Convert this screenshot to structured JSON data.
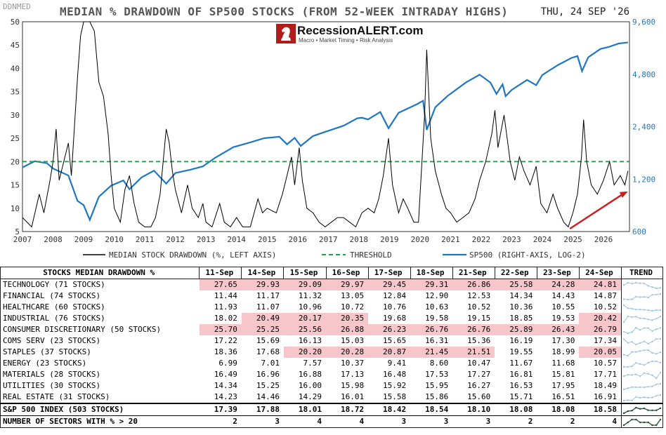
{
  "header": {
    "source": "DDNMED",
    "title": "MEDIAN % DRAWDOWN OF SP500 STOCKS (FROM 52-WEEK INTRADAY HIGHS)",
    "date": "THU, 24 SEP '26",
    "logo_text": "RecessionALERT.com",
    "logo_sub": "Macro • Market Timing • Risk Analysis"
  },
  "colors": {
    "drawdown": "#000000",
    "sp500": "#1f77c4",
    "threshold": "#1aa64a",
    "trend_arrow": "#cc1f1f",
    "highlight": "#f7c6cb"
  },
  "chart_data": {
    "type": "line",
    "x_range": [
      2007,
      2026.85
    ],
    "x_ticks": [
      "2007",
      "2008",
      "2009",
      "2010",
      "2011",
      "2012",
      "2013",
      "2014",
      "2015",
      "2016",
      "2017",
      "2018",
      "2019",
      "2020",
      "2021",
      "2022",
      "2023",
      "2024",
      "2025",
      "2026"
    ],
    "left_axis": {
      "ylim": [
        5,
        50
      ],
      "ticks": [
        "5",
        "10",
        "15",
        "20",
        "25",
        "30",
        "35",
        "40",
        "45",
        "50"
      ],
      "label": "MEDIAN STOCK DRAWDOWN (%, LEFT AXIS)"
    },
    "right_axis": {
      "scale": "log2",
      "ylim": [
        600,
        9600
      ],
      "ticks": [
        "600",
        "1,200",
        "2,400",
        "4,800",
        "9,600"
      ],
      "label": "SP500 (RIGHT-AXIS, LOG-2)"
    },
    "threshold": {
      "value": 20,
      "label": "THRESHOLD"
    },
    "series": [
      {
        "name": "MEDIAN STOCK DRAWDOWN (%, LEFT AXIS)",
        "axis": "left",
        "points": [
          [
            2007.0,
            8
          ],
          [
            2007.3,
            6
          ],
          [
            2007.55,
            13
          ],
          [
            2007.7,
            9
          ],
          [
            2007.9,
            16
          ],
          [
            2008.0,
            20
          ],
          [
            2008.1,
            27
          ],
          [
            2008.2,
            16
          ],
          [
            2008.35,
            20
          ],
          [
            2008.5,
            24
          ],
          [
            2008.6,
            17
          ],
          [
            2008.8,
            38
          ],
          [
            2008.9,
            47
          ],
          [
            2009.0,
            50
          ],
          [
            2009.2,
            50
          ],
          [
            2009.35,
            48
          ],
          [
            2009.5,
            37
          ],
          [
            2009.65,
            34
          ],
          [
            2009.8,
            26
          ],
          [
            2009.9,
            17
          ],
          [
            2010.0,
            10
          ],
          [
            2010.2,
            7
          ],
          [
            2010.35,
            14
          ],
          [
            2010.5,
            17
          ],
          [
            2010.65,
            11
          ],
          [
            2010.8,
            7
          ],
          [
            2011.0,
            6
          ],
          [
            2011.2,
            6
          ],
          [
            2011.35,
            8
          ],
          [
            2011.5,
            13
          ],
          [
            2011.7,
            27
          ],
          [
            2011.8,
            24
          ],
          [
            2011.9,
            18
          ],
          [
            2012.0,
            14
          ],
          [
            2012.2,
            9
          ],
          [
            2012.4,
            15
          ],
          [
            2012.55,
            10
          ],
          [
            2012.75,
            8
          ],
          [
            2012.9,
            11
          ],
          [
            2013.0,
            7
          ],
          [
            2013.2,
            6
          ],
          [
            2013.45,
            11
          ],
          [
            2013.6,
            7
          ],
          [
            2013.8,
            6
          ],
          [
            2014.0,
            8
          ],
          [
            2014.2,
            6
          ],
          [
            2014.45,
            6
          ],
          [
            2014.7,
            12
          ],
          [
            2014.85,
            9
          ],
          [
            2015.0,
            10
          ],
          [
            2015.3,
            9
          ],
          [
            2015.5,
            13
          ],
          [
            2015.65,
            17
          ],
          [
            2015.8,
            21
          ],
          [
            2015.9,
            15
          ],
          [
            2016.05,
            23
          ],
          [
            2016.15,
            16
          ],
          [
            2016.3,
            10
          ],
          [
            2016.5,
            9
          ],
          [
            2016.7,
            7
          ],
          [
            2016.9,
            6
          ],
          [
            2017.1,
            7
          ],
          [
            2017.3,
            8
          ],
          [
            2017.5,
            8
          ],
          [
            2017.7,
            7
          ],
          [
            2017.9,
            6
          ],
          [
            2018.1,
            9
          ],
          [
            2018.3,
            10
          ],
          [
            2018.5,
            9
          ],
          [
            2018.65,
            12
          ],
          [
            2018.8,
            17
          ],
          [
            2018.97,
            25
          ],
          [
            2019.1,
            15
          ],
          [
            2019.3,
            9
          ],
          [
            2019.45,
            12
          ],
          [
            2019.6,
            10
          ],
          [
            2019.8,
            7
          ],
          [
            2019.95,
            7
          ],
          [
            2020.15,
            30
          ],
          [
            2020.22,
            44
          ],
          [
            2020.35,
            25
          ],
          [
            2020.5,
            18
          ],
          [
            2020.7,
            13
          ],
          [
            2020.85,
            10
          ],
          [
            2021.0,
            9
          ],
          [
            2021.2,
            7
          ],
          [
            2021.4,
            8
          ],
          [
            2021.6,
            9
          ],
          [
            2021.8,
            12
          ],
          [
            2021.95,
            16
          ],
          [
            2022.15,
            20
          ],
          [
            2022.35,
            26
          ],
          [
            2022.45,
            31
          ],
          [
            2022.55,
            23
          ],
          [
            2022.75,
            30
          ],
          [
            2022.85,
            25
          ],
          [
            2022.95,
            20
          ],
          [
            2023.1,
            16
          ],
          [
            2023.25,
            21
          ],
          [
            2023.4,
            18
          ],
          [
            2023.6,
            15
          ],
          [
            2023.8,
            19
          ],
          [
            2023.95,
            11
          ],
          [
            2024.15,
            9
          ],
          [
            2024.35,
            13
          ],
          [
            2024.5,
            10
          ],
          [
            2024.7,
            7
          ],
          [
            2024.85,
            6
          ],
          [
            2025.0,
            9
          ],
          [
            2025.15,
            13
          ],
          [
            2025.28,
            21
          ],
          [
            2025.35,
            29
          ],
          [
            2025.45,
            20
          ],
          [
            2025.6,
            15
          ],
          [
            2025.8,
            13
          ],
          [
            2026.0,
            16
          ],
          [
            2026.2,
            20
          ],
          [
            2026.35,
            15
          ],
          [
            2026.55,
            17
          ],
          [
            2026.7,
            15
          ],
          [
            2026.8,
            18
          ]
        ]
      },
      {
        "name": "SP500 (RIGHT-AXIS, LOG-2)",
        "axis": "right",
        "points": [
          [
            2007.0,
            1400
          ],
          [
            2007.4,
            1520
          ],
          [
            2007.8,
            1480
          ],
          [
            2008.0,
            1380
          ],
          [
            2008.5,
            1260
          ],
          [
            2008.8,
            900
          ],
          [
            2009.0,
            850
          ],
          [
            2009.2,
            700
          ],
          [
            2009.5,
            950
          ],
          [
            2009.9,
            1100
          ],
          [
            2010.3,
            1180
          ],
          [
            2010.5,
            1050
          ],
          [
            2010.9,
            1230
          ],
          [
            2011.3,
            1340
          ],
          [
            2011.7,
            1130
          ],
          [
            2012.0,
            1300
          ],
          [
            2012.5,
            1360
          ],
          [
            2012.9,
            1420
          ],
          [
            2013.3,
            1590
          ],
          [
            2013.9,
            1830
          ],
          [
            2014.5,
            1960
          ],
          [
            2014.9,
            2060
          ],
          [
            2015.4,
            2100
          ],
          [
            2015.65,
            1900
          ],
          [
            2015.9,
            2070
          ],
          [
            2016.1,
            1860
          ],
          [
            2016.5,
            2120
          ],
          [
            2016.9,
            2240
          ],
          [
            2017.5,
            2430
          ],
          [
            2017.95,
            2680
          ],
          [
            2018.1,
            2700
          ],
          [
            2018.3,
            2640
          ],
          [
            2018.7,
            2910
          ],
          [
            2018.97,
            2350
          ],
          [
            2019.3,
            2880
          ],
          [
            2019.9,
            3230
          ],
          [
            2020.1,
            3380
          ],
          [
            2020.22,
            2300
          ],
          [
            2020.5,
            3100
          ],
          [
            2020.9,
            3600
          ],
          [
            2021.5,
            4300
          ],
          [
            2021.95,
            4770
          ],
          [
            2022.3,
            4300
          ],
          [
            2022.5,
            3700
          ],
          [
            2022.7,
            4200
          ],
          [
            2022.8,
            3590
          ],
          [
            2023.0,
            3900
          ],
          [
            2023.5,
            4450
          ],
          [
            2023.8,
            4150
          ],
          [
            2024.0,
            4750
          ],
          [
            2024.5,
            5400
          ],
          [
            2024.95,
            5950
          ],
          [
            2025.15,
            6100
          ],
          [
            2025.3,
            5000
          ],
          [
            2025.5,
            6000
          ],
          [
            2025.9,
            6700
          ],
          [
            2026.2,
            6900
          ],
          [
            2026.5,
            7200
          ],
          [
            2026.8,
            7300
          ]
        ]
      }
    ],
    "annotation": "trend-arrow"
  },
  "table": {
    "corner": "STOCKS MEDIAN DRAWDOWN %",
    "trend_header": "TREND",
    "dates": [
      "11-Sep",
      "14-Sep",
      "15-Sep",
      "16-Sep",
      "17-Sep",
      "18-Sep",
      "21-Sep",
      "22-Sep",
      "23-Sep",
      "24-Sep"
    ],
    "rows": [
      {
        "sector": "TECHNOLOGY (71 STOCKS)",
        "values": [
          "27.65",
          "29.93",
          "29.09",
          "29.97",
          "29.45",
          "29.31",
          "26.86",
          "25.58",
          "24.28",
          "24.81"
        ],
        "hot": [
          1,
          1,
          1,
          1,
          1,
          1,
          1,
          1,
          1,
          1
        ]
      },
      {
        "sector": "FINANCIAL (74 STOCKS)",
        "values": [
          "11.44",
          "11.17",
          "11.32",
          "13.05",
          "12.84",
          "12.90",
          "12.53",
          "14.34",
          "14.43",
          "14.87"
        ],
        "hot": [
          0,
          0,
          0,
          0,
          0,
          0,
          0,
          0,
          0,
          0
        ]
      },
      {
        "sector": "HEALTHCARE (60 STOCKS)",
        "values": [
          "11.93",
          "11.07",
          "10.96",
          "10.72",
          "10.76",
          "10.63",
          "10.52",
          "10.36",
          "10.55",
          "10.52"
        ],
        "hot": [
          0,
          0,
          0,
          0,
          0,
          0,
          0,
          0,
          0,
          0
        ]
      },
      {
        "sector": "INDUSTRIAL (76 STOCKS)",
        "values": [
          "18.02",
          "20.49",
          "20.17",
          "20.35",
          "19.68",
          "19.58",
          "19.15",
          "18.85",
          "19.53",
          "20.42"
        ],
        "hot": [
          0,
          1,
          1,
          1,
          0,
          0,
          0,
          0,
          0,
          1
        ]
      },
      {
        "sector": "CONSUMER DISCRETIONARY (50 STOCKS)",
        "values": [
          "25.70",
          "25.25",
          "25.56",
          "26.88",
          "26.23",
          "26.76",
          "26.76",
          "25.89",
          "26.43",
          "26.79"
        ],
        "hot": [
          1,
          1,
          1,
          1,
          1,
          1,
          1,
          1,
          1,
          1
        ]
      },
      {
        "sector": "COMS SERV (23 STOCKS)",
        "values": [
          "17.22",
          "15.69",
          "16.13",
          "15.03",
          "15.65",
          "16.31",
          "15.36",
          "16.19",
          "17.30",
          "17.34"
        ],
        "hot": [
          0,
          0,
          0,
          0,
          0,
          0,
          0,
          0,
          0,
          0
        ]
      },
      {
        "sector": "STAPLES (37 STOCKS)",
        "values": [
          "18.36",
          "17.68",
          "20.20",
          "20.28",
          "20.87",
          "21.45",
          "21.51",
          "19.55",
          "18.99",
          "20.05"
        ],
        "hot": [
          0,
          0,
          1,
          1,
          1,
          1,
          1,
          0,
          0,
          1
        ]
      },
      {
        "sector": "ENERGY (23 STOCKS)",
        "values": [
          "6.99",
          "7.01",
          "7.57",
          "10.37",
          "9.41",
          "8.60",
          "10.47",
          "11.67",
          "11.68",
          "10.57"
        ],
        "hot": [
          0,
          0,
          0,
          0,
          0,
          0,
          0,
          0,
          0,
          0
        ]
      },
      {
        "sector": "MATERIALS (28 STOCKS)",
        "values": [
          "16.49",
          "16.96",
          "16.88",
          "17.13",
          "16.48",
          "17.53",
          "17.27",
          "16.81",
          "15.81",
          "17.71"
        ],
        "hot": [
          0,
          0,
          0,
          0,
          0,
          0,
          0,
          0,
          0,
          0
        ]
      },
      {
        "sector": "UTILITIES (30 STOCKS)",
        "values": [
          "14.34",
          "15.25",
          "16.00",
          "15.98",
          "15.92",
          "15.95",
          "16.27",
          "16.53",
          "17.95",
          "18.49"
        ],
        "hot": [
          0,
          0,
          0,
          0,
          0,
          0,
          0,
          0,
          0,
          0
        ]
      },
      {
        "sector": "REAL ESTATE (31 STOCKS)",
        "values": [
          "14.23",
          "14.46",
          "14.29",
          "16.01",
          "15.58",
          "15.86",
          "15.60",
          "15.71",
          "16.51",
          "16.91"
        ],
        "hot": [
          0,
          0,
          0,
          0,
          0,
          0,
          0,
          0,
          0,
          0
        ]
      }
    ],
    "total": {
      "sector": "S&P 500 INDEX (503 STOCKS)",
      "values": [
        "17.39",
        "17.88",
        "18.01",
        "18.72",
        "18.42",
        "18.54",
        "18.10",
        "18.08",
        "18.08",
        "18.58"
      ]
    },
    "count": {
      "sector": "NUMBER OF SECTORS WITH % > 20",
      "values": [
        "2",
        "3",
        "4",
        "4",
        "3",
        "3",
        "3",
        "2",
        "2",
        "4"
      ]
    }
  }
}
